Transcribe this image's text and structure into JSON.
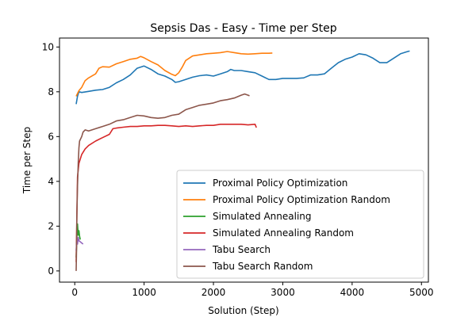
{
  "chart_data": {
    "type": "line",
    "title": "Sepsis Das - Easy - Time per Step",
    "xlabel": "Solution (Step)",
    "ylabel": "Time per Step",
    "xlim": [
      -220,
      5100
    ],
    "ylim": [
      -0.5,
      10.4
    ],
    "xticks": [
      0,
      1000,
      2000,
      3000,
      4000,
      5000
    ],
    "yticks": [
      0,
      2,
      4,
      6,
      8,
      10
    ],
    "grid": false,
    "legend_position": "lower-right",
    "series": [
      {
        "name": "Proximal Policy Optimization",
        "color": "#1f77b4",
        "points": [
          [
            20,
            7.45
          ],
          [
            40,
            7.8
          ],
          [
            60,
            8.0
          ],
          [
            100,
            7.97
          ],
          [
            200,
            8.02
          ],
          [
            300,
            8.07
          ],
          [
            400,
            8.1
          ],
          [
            500,
            8.2
          ],
          [
            600,
            8.4
          ],
          [
            700,
            8.55
          ],
          [
            800,
            8.75
          ],
          [
            900,
            9.05
          ],
          [
            1000,
            9.15
          ],
          [
            1100,
            9.0
          ],
          [
            1200,
            8.8
          ],
          [
            1300,
            8.7
          ],
          [
            1400,
            8.55
          ],
          [
            1450,
            8.42
          ],
          [
            1500,
            8.45
          ],
          [
            1600,
            8.55
          ],
          [
            1700,
            8.65
          ],
          [
            1800,
            8.72
          ],
          [
            1900,
            8.75
          ],
          [
            2000,
            8.7
          ],
          [
            2100,
            8.8
          ],
          [
            2200,
            8.9
          ],
          [
            2250,
            9.0
          ],
          [
            2300,
            8.95
          ],
          [
            2400,
            8.95
          ],
          [
            2500,
            8.9
          ],
          [
            2600,
            8.85
          ],
          [
            2700,
            8.7
          ],
          [
            2800,
            8.55
          ],
          [
            2900,
            8.55
          ],
          [
            3000,
            8.6
          ],
          [
            3100,
            8.6
          ],
          [
            3200,
            8.6
          ],
          [
            3300,
            8.62
          ],
          [
            3400,
            8.75
          ],
          [
            3500,
            8.75
          ],
          [
            3600,
            8.8
          ],
          [
            3700,
            9.05
          ],
          [
            3800,
            9.3
          ],
          [
            3900,
            9.45
          ],
          [
            4000,
            9.55
          ],
          [
            4100,
            9.7
          ],
          [
            4200,
            9.65
          ],
          [
            4300,
            9.5
          ],
          [
            4400,
            9.3
          ],
          [
            4500,
            9.3
          ],
          [
            4600,
            9.5
          ],
          [
            4700,
            9.7
          ],
          [
            4800,
            9.8
          ],
          [
            4830,
            9.82
          ]
        ]
      },
      {
        "name": "Proximal Policy Optimization Random",
        "color": "#ff7f0e",
        "points": [
          [
            20,
            7.8
          ],
          [
            60,
            8.05
          ],
          [
            100,
            8.2
          ],
          [
            150,
            8.5
          ],
          [
            200,
            8.62
          ],
          [
            300,
            8.8
          ],
          [
            350,
            9.05
          ],
          [
            400,
            9.12
          ],
          [
            500,
            9.1
          ],
          [
            600,
            9.25
          ],
          [
            700,
            9.35
          ],
          [
            800,
            9.45
          ],
          [
            900,
            9.5
          ],
          [
            950,
            9.58
          ],
          [
            1000,
            9.52
          ],
          [
            1100,
            9.35
          ],
          [
            1200,
            9.2
          ],
          [
            1300,
            8.95
          ],
          [
            1400,
            8.78
          ],
          [
            1450,
            8.72
          ],
          [
            1500,
            8.85
          ],
          [
            1550,
            9.1
          ],
          [
            1600,
            9.4
          ],
          [
            1700,
            9.6
          ],
          [
            1800,
            9.65
          ],
          [
            1900,
            9.7
          ],
          [
            2000,
            9.72
          ],
          [
            2100,
            9.75
          ],
          [
            2200,
            9.8
          ],
          [
            2300,
            9.75
          ],
          [
            2400,
            9.7
          ],
          [
            2500,
            9.68
          ],
          [
            2600,
            9.7
          ],
          [
            2700,
            9.72
          ],
          [
            2800,
            9.72
          ],
          [
            2850,
            9.73
          ]
        ]
      },
      {
        "name": "Simulated Annealing",
        "color": "#2ca02c",
        "points": [
          [
            20,
            0.6
          ],
          [
            30,
            1.5
          ],
          [
            40,
            2.1
          ],
          [
            50,
            1.6
          ],
          [
            60,
            1.8
          ],
          [
            70,
            1.55
          ],
          [
            80,
            1.4
          ]
        ]
      },
      {
        "name": "Simulated Annealing Random",
        "color": "#d62728",
        "points": [
          [
            20,
            0.4
          ],
          [
            30,
            2.5
          ],
          [
            40,
            4.2
          ],
          [
            60,
            4.8
          ],
          [
            80,
            5.0
          ],
          [
            100,
            5.2
          ],
          [
            150,
            5.45
          ],
          [
            200,
            5.6
          ],
          [
            300,
            5.8
          ],
          [
            400,
            5.95
          ],
          [
            500,
            6.1
          ],
          [
            550,
            6.35
          ],
          [
            600,
            6.38
          ],
          [
            700,
            6.42
          ],
          [
            800,
            6.45
          ],
          [
            900,
            6.45
          ],
          [
            1000,
            6.48
          ],
          [
            1100,
            6.48
          ],
          [
            1200,
            6.5
          ],
          [
            1300,
            6.5
          ],
          [
            1400,
            6.48
          ],
          [
            1500,
            6.45
          ],
          [
            1600,
            6.48
          ],
          [
            1700,
            6.45
          ],
          [
            1800,
            6.48
          ],
          [
            1900,
            6.5
          ],
          [
            2000,
            6.5
          ],
          [
            2100,
            6.55
          ],
          [
            2200,
            6.55
          ],
          [
            2300,
            6.55
          ],
          [
            2400,
            6.55
          ],
          [
            2500,
            6.52
          ],
          [
            2600,
            6.55
          ],
          [
            2620,
            6.4
          ]
        ]
      },
      {
        "name": "Tabu Search",
        "color": "#9467bd",
        "points": [
          [
            20,
            0.9
          ],
          [
            30,
            1.4
          ],
          [
            40,
            1.2
          ],
          [
            50,
            1.5
          ],
          [
            60,
            1.35
          ],
          [
            80,
            1.3
          ],
          [
            100,
            1.25
          ],
          [
            120,
            1.2
          ]
        ]
      },
      {
        "name": "Tabu Search Random",
        "color": "#8c564b",
        "points": [
          [
            20,
            0.0
          ],
          [
            25,
            0.8
          ],
          [
            30,
            2.5
          ],
          [
            40,
            3.8
          ],
          [
            50,
            4.8
          ],
          [
            60,
            5.5
          ],
          [
            70,
            5.8
          ],
          [
            100,
            6.0
          ],
          [
            120,
            6.2
          ],
          [
            150,
            6.3
          ],
          [
            200,
            6.25
          ],
          [
            300,
            6.35
          ],
          [
            400,
            6.45
          ],
          [
            500,
            6.55
          ],
          [
            600,
            6.7
          ],
          [
            700,
            6.75
          ],
          [
            800,
            6.85
          ],
          [
            900,
            6.95
          ],
          [
            1000,
            6.92
          ],
          [
            1100,
            6.85
          ],
          [
            1200,
            6.82
          ],
          [
            1300,
            6.85
          ],
          [
            1400,
            6.95
          ],
          [
            1500,
            7.0
          ],
          [
            1600,
            7.2
          ],
          [
            1700,
            7.3
          ],
          [
            1800,
            7.4
          ],
          [
            1900,
            7.45
          ],
          [
            2000,
            7.5
          ],
          [
            2100,
            7.6
          ],
          [
            2200,
            7.65
          ],
          [
            2300,
            7.72
          ],
          [
            2400,
            7.85
          ],
          [
            2450,
            7.9
          ],
          [
            2500,
            7.85
          ],
          [
            2520,
            7.82
          ]
        ]
      }
    ]
  }
}
